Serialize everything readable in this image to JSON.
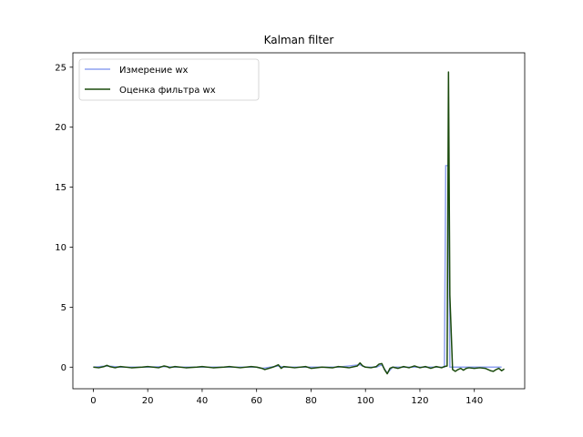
{
  "chart_data": {
    "type": "line",
    "title": "Kalman filter",
    "xlabel": "",
    "ylabel": "",
    "xlim": [
      -7.5,
      158.5
    ],
    "ylim": [
      -1.8,
      26.2
    ],
    "xticks": [
      0,
      20,
      40,
      60,
      80,
      100,
      120,
      140
    ],
    "yticks": [
      0,
      5,
      10,
      15,
      20,
      25
    ],
    "grid": false,
    "legend_position": "top-left",
    "series": [
      {
        "name": "Измерение wx",
        "color": "#8da0f0",
        "x": [
          0,
          5,
          10,
          20,
          26,
          30,
          40,
          50,
          60,
          62,
          68,
          70,
          80,
          90,
          98,
          100,
          104,
          106,
          108,
          110,
          120,
          125,
          128,
          129,
          129.5,
          130,
          130.5,
          131,
          131.5,
          132,
          133,
          135,
          140,
          145,
          150
        ],
        "y": [
          0.0,
          0.1,
          0.0,
          0.0,
          0.05,
          0.0,
          0.0,
          0.0,
          0.0,
          -0.1,
          0.1,
          0.0,
          0.0,
          0.0,
          0.2,
          0.0,
          0.0,
          0.2,
          -0.5,
          0.0,
          0.0,
          0.0,
          0.0,
          0.0,
          16.8,
          16.8,
          16.8,
          0.0,
          0.0,
          0.0,
          0.0,
          0.0,
          0.0,
          0.0,
          0.0
        ]
      },
      {
        "name": "Оценка фильтра wx",
        "color": "#1a4a0c",
        "x": [
          0,
          2,
          4,
          5,
          6,
          8,
          10,
          14,
          18,
          20,
          24,
          26,
          27,
          28,
          30,
          34,
          38,
          40,
          44,
          48,
          50,
          54,
          58,
          60,
          62,
          63,
          66,
          68,
          69,
          70,
          74,
          78,
          80,
          84,
          88,
          90,
          94,
          97,
          98,
          99,
          100,
          102,
          104,
          105,
          106,
          107,
          108,
          109,
          110,
          112,
          114,
          116,
          118,
          120,
          122,
          124,
          126,
          128,
          129,
          130,
          130.5,
          131,
          132,
          133,
          134,
          135,
          136,
          137,
          138,
          140,
          142,
          144,
          146,
          147,
          148,
          149,
          150,
          151
        ],
        "y": [
          0.0,
          -0.05,
          0.05,
          0.15,
          0.05,
          -0.05,
          0.05,
          -0.05,
          0.0,
          0.05,
          -0.05,
          0.1,
          0.05,
          -0.05,
          0.05,
          -0.05,
          0.0,
          0.05,
          -0.05,
          0.0,
          0.05,
          -0.05,
          0.05,
          0.0,
          -0.1,
          -0.2,
          0.0,
          0.2,
          -0.1,
          0.05,
          -0.05,
          0.05,
          -0.1,
          0.0,
          -0.05,
          0.05,
          -0.05,
          0.1,
          0.35,
          0.1,
          0.0,
          -0.05,
          0.05,
          0.25,
          0.3,
          -0.2,
          -0.55,
          -0.1,
          0.0,
          -0.1,
          0.05,
          -0.05,
          0.1,
          -0.05,
          0.05,
          -0.1,
          0.05,
          -0.05,
          0.05,
          0.1,
          24.6,
          6.0,
          -0.2,
          -0.35,
          -0.2,
          -0.1,
          -0.25,
          -0.1,
          -0.05,
          -0.1,
          -0.05,
          -0.1,
          -0.3,
          -0.35,
          -0.2,
          -0.1,
          -0.3,
          -0.15
        ]
      }
    ]
  }
}
